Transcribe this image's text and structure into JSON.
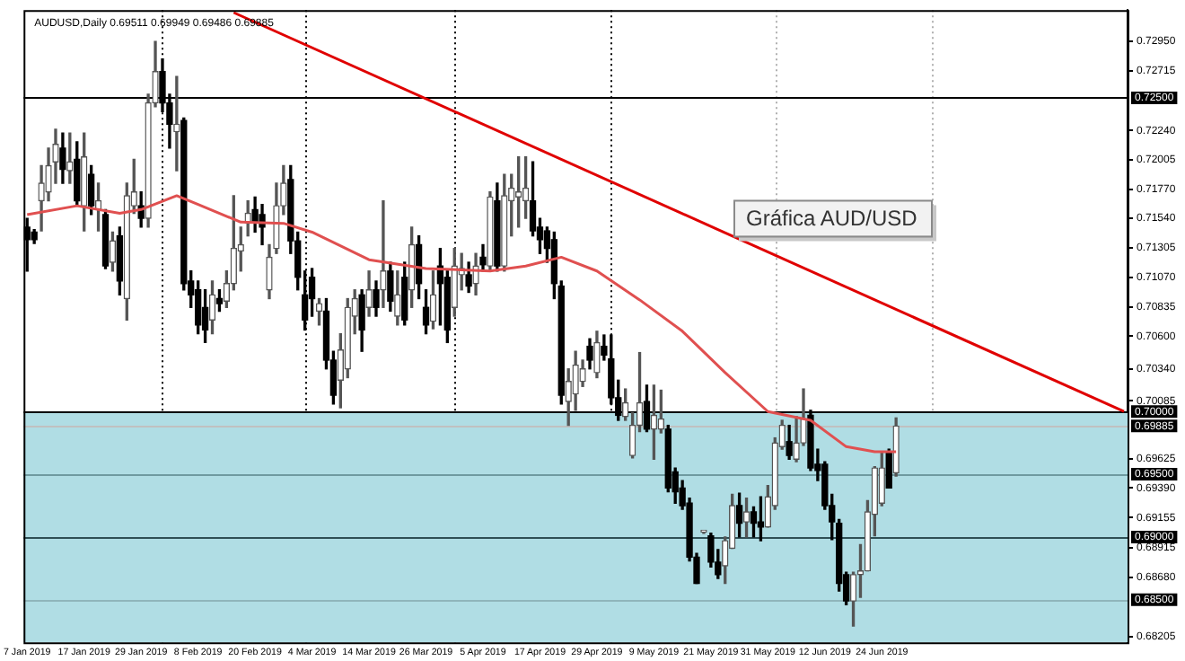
{
  "chart_data": {
    "type": "candlestick",
    "title": "AUDUSD,Daily 0.69511 0.69949 0.69486 0.69885",
    "categories": [
      "7 Jan 2019",
      null,
      null,
      null,
      null,
      null,
      null,
      null,
      "17 Jan 2019",
      null,
      null,
      null,
      null,
      null,
      null,
      null,
      "29 Jan 2019",
      null,
      null,
      null,
      null,
      null,
      null,
      null,
      "8 Feb 2019",
      null,
      null,
      null,
      null,
      null,
      null,
      null,
      "20 Feb 2019",
      null,
      null,
      null,
      null,
      null,
      null,
      null,
      "4 Mar 2019",
      null,
      null,
      null,
      null,
      null,
      null,
      null,
      "14 Mar 2019",
      null,
      null,
      null,
      null,
      null,
      null,
      null,
      "26 Mar 2019",
      null,
      null,
      null,
      null,
      null,
      null,
      null,
      "5 Apr 2019",
      null,
      null,
      null,
      null,
      null,
      null,
      null,
      "17 Apr 2019",
      null,
      null,
      null,
      null,
      null,
      null,
      null,
      "29 Apr 2019",
      null,
      null,
      null,
      null,
      null,
      null,
      null,
      "9 May 2019",
      null,
      null,
      null,
      null,
      null,
      null,
      null,
      "21 May 2019",
      null,
      null,
      null,
      null,
      null,
      null,
      null,
      "31 May 2019",
      null,
      null,
      null,
      null,
      null,
      null,
      null,
      "12 Jun 2019",
      null,
      null,
      null,
      null,
      null,
      null,
      null,
      "24 Jun 2019",
      null,
      null,
      null,
      null,
      null,
      null,
      null,
      null,
      null,
      null,
      null,
      null,
      null,
      null,
      null,
      null,
      null,
      null,
      null,
      null,
      null,
      null,
      null,
      null,
      null,
      null,
      null,
      null,
      null,
      null,
      null,
      null,
      null,
      null
    ],
    "ohlc": [
      [
        0.7147,
        0.7154,
        0.7112,
        0.7137
      ],
      [
        0.7143,
        0.7145,
        0.7134,
        0.7137
      ],
      [
        0.7168,
        0.7196,
        0.7144,
        0.7182
      ],
      [
        0.7175,
        0.721,
        0.7168,
        0.7196
      ],
      [
        0.7199,
        0.7225,
        0.7182,
        0.7213
      ],
      [
        0.721,
        0.7222,
        0.7182,
        0.7193
      ],
      [
        0.7192,
        0.7222,
        0.7182,
        0.7199
      ],
      [
        0.7201,
        0.7215,
        0.7165,
        0.7168
      ],
      [
        0.7164,
        0.7222,
        0.7144,
        0.7203
      ],
      [
        0.7189,
        0.7196,
        0.7157,
        0.7164
      ],
      [
        0.7161,
        0.7182,
        0.7144,
        0.7168
      ],
      [
        0.7157,
        0.7161,
        0.7114,
        0.7116
      ],
      [
        0.7119,
        0.7143,
        0.7112,
        0.7136
      ],
      [
        0.714,
        0.7147,
        0.7093,
        0.7104
      ],
      [
        0.709,
        0.7182,
        0.7073,
        0.7172
      ],
      [
        0.7164,
        0.7201,
        0.7158,
        0.7175
      ],
      [
        0.7164,
        0.7175,
        0.7147,
        0.7154
      ],
      [
        0.7154,
        0.7253,
        0.7147,
        0.7246
      ],
      [
        0.7246,
        0.7295,
        0.7243,
        0.7271
      ],
      [
        0.7271,
        0.7281,
        0.7239,
        0.7246
      ],
      [
        0.7246,
        0.7253,
        0.721,
        0.7229
      ],
      [
        0.7223,
        0.7267,
        0.7192,
        0.7229
      ],
      [
        0.7232,
        0.7234,
        0.7097,
        0.7102
      ],
      [
        0.7104,
        0.7112,
        0.7083,
        0.7093
      ],
      [
        0.7097,
        0.7104,
        0.7062,
        0.7069
      ],
      [
        0.7083,
        0.7097,
        0.7055,
        0.7065
      ],
      [
        0.7073,
        0.7104,
        0.7062,
        0.7093
      ],
      [
        0.709,
        0.7097,
        0.708,
        0.7086
      ],
      [
        0.7088,
        0.7112,
        0.7083,
        0.7102
      ],
      [
        0.7102,
        0.7172,
        0.7097,
        0.713
      ],
      [
        0.7128,
        0.7147,
        0.7112,
        0.7133
      ],
      [
        0.715,
        0.7168,
        0.714,
        0.7158
      ],
      [
        0.7161,
        0.7171,
        0.7143,
        0.7151
      ],
      [
        0.7157,
        0.7165,
        0.7133,
        0.7147
      ],
      [
        0.7097,
        0.7133,
        0.709,
        0.7123
      ],
      [
        0.713,
        0.7182,
        0.7126,
        0.7164
      ],
      [
        0.7164,
        0.7196,
        0.7157,
        0.7182
      ],
      [
        0.7185,
        0.7196,
        0.7126,
        0.7136
      ],
      [
        0.7136,
        0.7143,
        0.7097,
        0.7107
      ],
      [
        0.7093,
        0.7112,
        0.7065,
        0.7073
      ],
      [
        0.7107,
        0.7114,
        0.7076,
        0.709
      ],
      [
        0.708,
        0.709,
        0.7069,
        0.7086
      ],
      [
        0.708,
        0.709,
        0.7034,
        0.7041
      ],
      [
        0.7041,
        0.7048,
        0.7006,
        0.7013
      ],
      [
        0.7025,
        0.7062,
        0.7003,
        0.7049
      ],
      [
        0.7034,
        0.709,
        0.7027,
        0.7083
      ],
      [
        0.7076,
        0.7097,
        0.7062,
        0.709
      ],
      [
        0.7093,
        0.7097,
        0.7048,
        0.7065
      ],
      [
        0.7083,
        0.7112,
        0.7076,
        0.7097
      ],
      [
        0.7097,
        0.7104,
        0.7076,
        0.7083
      ],
      [
        0.7097,
        0.7168,
        0.7083,
        0.7112
      ],
      [
        0.7112,
        0.7119,
        0.708,
        0.7088
      ],
      [
        0.7076,
        0.7112,
        0.7069,
        0.7093
      ],
      [
        0.7107,
        0.7119,
        0.7069,
        0.7073
      ],
      [
        0.7097,
        0.7147,
        0.7083,
        0.7133
      ],
      [
        0.7133,
        0.714,
        0.709,
        0.7102
      ],
      [
        0.7083,
        0.7097,
        0.7062,
        0.7069
      ],
      [
        0.7072,
        0.7112,
        0.7066,
        0.7093
      ],
      [
        0.7116,
        0.713,
        0.7069,
        0.7102
      ],
      [
        0.7107,
        0.7112,
        0.7055,
        0.7065
      ],
      [
        0.7083,
        0.713,
        0.7076,
        0.7116
      ],
      [
        0.7109,
        0.7126,
        0.7097,
        0.7114
      ],
      [
        0.7109,
        0.7119,
        0.7095,
        0.71
      ],
      [
        0.7102,
        0.7126,
        0.7093,
        0.7116
      ],
      [
        0.7123,
        0.7133,
        0.7112,
        0.7117
      ],
      [
        0.7116,
        0.7175,
        0.7112,
        0.7171
      ],
      [
        0.7168,
        0.7182,
        0.7112,
        0.7116
      ],
      [
        0.7116,
        0.7189,
        0.7112,
        0.7172
      ],
      [
        0.7168,
        0.7189,
        0.714,
        0.7178
      ],
      [
        0.7171,
        0.7203,
        0.7147,
        0.7175
      ],
      [
        0.7168,
        0.7203,
        0.7154,
        0.7178
      ],
      [
        0.7168,
        0.7199,
        0.714,
        0.7144
      ],
      [
        0.7147,
        0.7154,
        0.7126,
        0.7137
      ],
      [
        0.7144,
        0.7147,
        0.7119,
        0.713
      ],
      [
        0.7137,
        0.7143,
        0.709,
        0.7102
      ],
      [
        0.71,
        0.7104,
        0.7006,
        0.7013
      ],
      [
        0.7008,
        0.7034,
        0.6989,
        0.7024
      ],
      [
        0.7014,
        0.7048,
        0.7001,
        0.7037
      ],
      [
        0.7024,
        0.7041,
        0.702,
        0.7034
      ],
      [
        0.7052,
        0.7058,
        0.7034,
        0.7041
      ],
      [
        0.7031,
        0.7064,
        0.7027,
        0.7055
      ],
      [
        0.7052,
        0.7061,
        0.7041,
        0.7045
      ],
      [
        0.7042,
        0.7061,
        0.7006,
        0.7011
      ],
      [
        0.7011,
        0.7025,
        0.6993,
        0.6997
      ],
      [
        0.6996,
        0.7018,
        0.6993,
        0.7007
      ],
      [
        0.6965,
        0.6999,
        0.6963,
        0.6989
      ],
      [
        0.6989,
        0.7047,
        0.6984,
        0.7007
      ],
      [
        0.7008,
        0.7021,
        0.6984,
        0.6986
      ],
      [
        0.6986,
        0.7021,
        0.6962,
        0.6997
      ],
      [
        0.6986,
        0.7017,
        0.6983,
        0.6994
      ],
      [
        0.6986,
        0.6989,
        0.6936,
        0.6939
      ],
      [
        0.6952,
        0.6955,
        0.6927,
        0.6936
      ],
      [
        0.6939,
        0.6945,
        0.6922,
        0.6925
      ],
      [
        0.6927,
        0.6931,
        0.6881,
        0.6884
      ],
      [
        0.6884,
        0.6887,
        0.6863,
        0.6863
      ],
      [
        0.6904,
        0.6905,
        0.6903,
        0.6905
      ],
      [
        0.6901,
        0.6903,
        0.6876,
        0.688
      ],
      [
        0.688,
        0.689,
        0.6867,
        0.687
      ],
      [
        0.6877,
        0.69,
        0.6863,
        0.6897
      ],
      [
        0.6891,
        0.6934,
        0.6891,
        0.6925
      ],
      [
        0.6925,
        0.6935,
        0.69,
        0.6911
      ],
      [
        0.6912,
        0.6931,
        0.69,
        0.692
      ],
      [
        0.692,
        0.6924,
        0.69,
        0.6911
      ],
      [
        0.6912,
        0.6932,
        0.6897,
        0.6908
      ],
      [
        0.6908,
        0.6941,
        0.6908,
        0.6932
      ],
      [
        0.6925,
        0.6979,
        0.6922,
        0.6975
      ],
      [
        0.6972,
        0.6993,
        0.697,
        0.6989
      ],
      [
        0.6976,
        0.6989,
        0.6962,
        0.6965
      ],
      [
        0.6962,
        0.6996,
        0.696,
        0.6975
      ],
      [
        0.6975,
        0.7018,
        0.6973,
        0.6994
      ],
      [
        0.6997,
        0.7001,
        0.6953,
        0.6955
      ],
      [
        0.6958,
        0.697,
        0.6945,
        0.6953
      ],
      [
        0.6958,
        0.696,
        0.6922,
        0.6925
      ],
      [
        0.6925,
        0.6934,
        0.6898,
        0.6912
      ],
      [
        0.6911,
        0.6914,
        0.6857,
        0.6863
      ],
      [
        0.687,
        0.6872,
        0.6846,
        0.6849
      ],
      [
        0.6849,
        0.6872,
        0.6829,
        0.687
      ],
      [
        0.687,
        0.6894,
        0.6852,
        0.6873
      ],
      [
        0.6873,
        0.6929,
        0.6873,
        0.692
      ],
      [
        0.6918,
        0.6956,
        0.6901,
        0.6955
      ],
      [
        0.6927,
        0.6968,
        0.6925,
        0.6955
      ],
      [
        0.6968,
        0.697,
        0.6939,
        0.6939
      ],
      [
        0.69511,
        0.69949,
        0.69486,
        0.69885
      ],
      null,
      null,
      null,
      null,
      null,
      null,
      null,
      null,
      null,
      null,
      null,
      null,
      null,
      null,
      null,
      null,
      null,
      null,
      null,
      null,
      null,
      null,
      null,
      null,
      null,
      null,
      null,
      null,
      null,
      null,
      null,
      null
    ],
    "series": [
      {
        "type": "line",
        "color": "#e05050",
        "values": [
          0.7157,
          null,
          null,
          null,
          null,
          null,
          null,
          0.7164,
          null,
          null,
          null,
          null,
          null,
          0.7158,
          null,
          null,
          0.7161,
          null,
          null,
          null,
          null,
          0.7172,
          null,
          null,
          0.7165,
          null,
          null,
          null,
          null,
          null,
          0.7151,
          null,
          null,
          null,
          null,
          null,
          0.715,
          null,
          null,
          null,
          0.7143,
          null,
          null,
          null,
          null,
          null,
          null,
          null,
          0.7121,
          null,
          null,
          null,
          null,
          null,
          null,
          null,
          0.7114,
          null,
          null,
          null,
          null,
          null,
          null,
          null,
          null,
          0.7112,
          null,
          null,
          null,
          null,
          0.7116,
          null,
          null,
          null,
          null,
          0.7123,
          null,
          null,
          null,
          null,
          0.7112,
          null,
          null,
          null,
          null,
          null,
          0.7089,
          null,
          null,
          null,
          null,
          null,
          0.7064,
          null,
          null,
          null,
          null,
          null,
          0.7031,
          null,
          null,
          null,
          null,
          null,
          0.7,
          null,
          null,
          null,
          null,
          null,
          0.6993,
          null,
          null,
          null,
          null,
          0.6972,
          null,
          null,
          null,
          0.6968,
          null,
          null,
          0.6968,
          null,
          null,
          null,
          null,
          null,
          null,
          null,
          null,
          null,
          null,
          null,
          null,
          null,
          null,
          null,
          null,
          null,
          null,
          null,
          null,
          null,
          null,
          null,
          null,
          null,
          null,
          null,
          null,
          null,
          null,
          null,
          null
        ]
      },
      {
        "type": "line",
        "color": "#e00000",
        "values": [
          null,
          null,
          null,
          null,
          null,
          null,
          null,
          null,
          null,
          null,
          null,
          null,
          null,
          null,
          null,
          null,
          null,
          null,
          null,
          null,
          null,
          null,
          null,
          null,
          null,
          null,
          null,
          null,
          null,
          0.7318,
          null,
          null,
          null,
          null,
          null,
          null,
          null,
          null,
          null,
          null,
          null,
          null,
          null,
          null,
          null,
          null,
          null,
          null,
          null,
          null,
          null,
          null,
          null,
          null,
          null,
          null,
          null,
          null,
          null,
          null,
          null,
          null,
          null,
          null,
          null,
          null,
          null,
          null,
          null,
          null,
          null,
          null,
          null,
          null,
          null,
          null,
          null,
          null,
          null,
          null,
          null,
          null,
          null,
          null,
          null,
          null,
          null,
          null,
          null,
          null,
          null,
          null,
          null,
          null,
          null,
          null,
          null,
          null,
          null,
          null,
          null,
          null,
          null,
          null,
          null,
          null,
          null,
          null,
          null,
          null,
          null,
          null,
          null,
          null,
          null,
          null,
          null,
          null,
          null,
          null,
          null,
          null,
          null,
          null,
          null,
          null,
          null,
          null,
          null,
          null,
          null,
          null,
          null,
          null,
          null,
          null,
          null,
          null,
          null,
          null,
          null,
          null,
          null,
          null,
          null,
          null,
          null,
          null,
          null,
          null,
          null,
          null,
          null,
          null,
          0.7
        ]
      }
    ],
    "ylim": [
      0.6816,
      0.732
    ],
    "yticks": [
      {
        "value": 0.7295,
        "label": "0.72950"
      },
      {
        "value": 0.72715,
        "label": "0.72715"
      },
      {
        "value": 0.7224,
        "label": "0.72240"
      },
      {
        "value": 0.72005,
        "label": "0.72005"
      },
      {
        "value": 0.7177,
        "label": "0.71770"
      },
      {
        "value": 0.7154,
        "label": "0.71540"
      },
      {
        "value": 0.71305,
        "label": "0.71305"
      },
      {
        "value": 0.7107,
        "label": "0.71070"
      },
      {
        "value": 0.70835,
        "label": "0.70835"
      },
      {
        "value": 0.706,
        "label": "0.70600"
      },
      {
        "value": 0.7034,
        "label": "0.70340"
      },
      {
        "value": 0.70085,
        "label": "0.70085"
      },
      {
        "value": 0.69625,
        "label": "0.69625"
      },
      {
        "value": 0.6939,
        "label": "0.69390"
      },
      {
        "value": 0.69155,
        "label": "0.69155"
      },
      {
        "value": 0.68915,
        "label": "0.68915"
      },
      {
        "value": 0.6868,
        "label": "0.68680"
      },
      {
        "value": 0.68205,
        "label": "0.68205"
      }
    ],
    "bands": [
      {
        "axis": "y",
        "from": 0.6816,
        "to": 0.7,
        "color": "#b0dde4"
      }
    ],
    "ref_lines": [
      {
        "axis": "y",
        "value": 0.725,
        "label": "0.72500",
        "color": "#000000"
      },
      {
        "axis": "y",
        "value": 0.7,
        "label": "0.70000",
        "color": "#000000"
      },
      {
        "axis": "y",
        "value": 0.69885,
        "label": "0.69885",
        "color": "#c0c0c0"
      },
      {
        "axis": "y",
        "value": 0.695,
        "label": "0.69500",
        "color": "#6f9aa0"
      },
      {
        "axis": "y",
        "value": 0.69,
        "label": "0.69000",
        "color": "#2f4f55"
      },
      {
        "axis": "y",
        "value": 0.685,
        "label": "0.68500",
        "color": "#8fb5bb"
      }
    ],
    "annotations": [
      "Gráfica AUD/USD"
    ],
    "legend": false,
    "grid": false
  }
}
